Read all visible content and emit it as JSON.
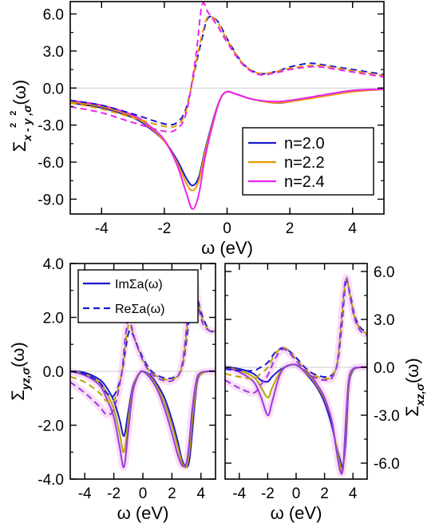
{
  "colors": {
    "n20": "#1a1acc",
    "n22": "#e69a00",
    "n24": "#ee22ee",
    "bottom_n22": "#b8a600",
    "bottom_n24": "#9b3bdc",
    "halo": "#f3c4f3",
    "zero_line": "#cccccc"
  },
  "chart_data": [
    {
      "id": "top",
      "type": "line",
      "title": "",
      "xlabel": "ω (eV)",
      "ylabel": "Σx²-y²,σ(ω)",
      "ylabel_parts": {
        "base": "Σ",
        "sub": "x - y ,σ",
        "sup": "2   2"
      },
      "xlim": [
        -5,
        5
      ],
      "ylim": [
        -10.2,
        7.0
      ],
      "xticks": [
        -4,
        -2,
        0,
        2,
        4
      ],
      "yticks": [
        -9.0,
        -6.0,
        -3.0,
        0.0,
        3.0,
        6.0
      ],
      "ytick_labels": [
        "-9.0",
        "-6.0",
        "-3.0",
        "0.0",
        "3.0",
        "6.0"
      ],
      "legend": {
        "position": "right",
        "entries": [
          "n=2.0",
          "n=2.2",
          "n=2.4"
        ]
      },
      "series": [
        {
          "name": "n=2.0",
          "part": "Im",
          "style": "solid",
          "x": [
            -5,
            -4,
            -3,
            -2.5,
            -2,
            -1.6,
            -1.3,
            -1.1,
            -0.9,
            -0.7,
            -0.4,
            -0.2,
            0,
            0.3,
            0.8,
            1.5,
            2,
            3,
            4,
            5
          ],
          "y": [
            -1.2,
            -1.6,
            -2.4,
            -3.2,
            -4.3,
            -5.8,
            -7.3,
            -7.9,
            -7.2,
            -5.0,
            -2.2,
            -0.8,
            -0.3,
            -0.5,
            -0.9,
            -1.2,
            -1.1,
            -0.6,
            -0.2,
            -0.1
          ]
        },
        {
          "name": "n=2.2",
          "part": "Im",
          "style": "solid",
          "x": [
            -5,
            -4,
            -3,
            -2.5,
            -2,
            -1.6,
            -1.3,
            -1.1,
            -0.9,
            -0.7,
            -0.4,
            -0.2,
            0,
            0.3,
            0.8,
            1.5,
            2,
            3,
            4,
            5
          ],
          "y": [
            -1.1,
            -1.5,
            -2.3,
            -3.1,
            -4.3,
            -6.0,
            -7.7,
            -8.3,
            -7.5,
            -5.2,
            -2.3,
            -0.8,
            -0.3,
            -0.5,
            -0.9,
            -1.2,
            -1.1,
            -0.7,
            -0.3,
            -0.1
          ]
        },
        {
          "name": "n=2.4",
          "part": "Im",
          "style": "solid",
          "x": [
            -5,
            -4,
            -3,
            -2.5,
            -2,
            -1.6,
            -1.3,
            -1.1,
            -0.9,
            -0.7,
            -0.4,
            -0.2,
            0,
            0.3,
            0.8,
            1.5,
            2,
            3,
            4,
            5
          ],
          "y": [
            -1.0,
            -1.4,
            -2.2,
            -3.0,
            -4.2,
            -6.2,
            -8.5,
            -9.8,
            -8.6,
            -5.6,
            -2.4,
            -0.8,
            -0.3,
            -0.5,
            -0.9,
            -1.1,
            -1.0,
            -0.6,
            -0.2,
            -0.1
          ]
        },
        {
          "name": "n=2.0",
          "part": "Re",
          "style": "dashed",
          "x": [
            -5,
            -4,
            -3,
            -2,
            -1.6,
            -1.3,
            -1.0,
            -0.8,
            -0.6,
            -0.3,
            0,
            0.5,
            1,
            1.5,
            2,
            2.6,
            3,
            4,
            5
          ],
          "y": [
            -1.0,
            -1.4,
            -2.1,
            -2.9,
            -2.8,
            -1.6,
            1.8,
            4.0,
            5.7,
            5.4,
            4.0,
            2.0,
            1.2,
            1.3,
            1.7,
            2.0,
            1.9,
            1.5,
            1.1
          ]
        },
        {
          "name": "n=2.2",
          "part": "Re",
          "style": "dashed",
          "x": [
            -5,
            -4,
            -3,
            -2,
            -1.6,
            -1.3,
            -1.0,
            -0.8,
            -0.6,
            -0.3,
            0,
            0.5,
            1,
            1.5,
            2,
            2.6,
            3,
            4,
            5
          ],
          "y": [
            -1.2,
            -1.7,
            -2.4,
            -3.1,
            -3.0,
            -1.8,
            2.0,
            4.3,
            5.8,
            5.3,
            3.9,
            2.0,
            1.2,
            1.3,
            1.6,
            1.8,
            1.8,
            1.4,
            1.0
          ]
        },
        {
          "name": "n=2.4",
          "part": "Re",
          "style": "dashed",
          "x": [
            -5,
            -4,
            -3,
            -2,
            -1.6,
            -1.3,
            -1.0,
            -0.8,
            -0.6,
            -0.3,
            0,
            0.5,
            1,
            1.5,
            2,
            2.6,
            3,
            4,
            5
          ],
          "y": [
            -1.5,
            -2.0,
            -2.8,
            -3.5,
            -3.3,
            -2.0,
            2.5,
            6.7,
            6.1,
            5.0,
            3.7,
            1.9,
            1.1,
            1.2,
            1.5,
            1.7,
            1.7,
            1.3,
            0.9
          ]
        }
      ]
    },
    {
      "id": "bottom-left",
      "type": "line",
      "title": "",
      "xlabel": "ω (eV)",
      "ylabel": "Σyz,σ(ω)",
      "ylabel_parts": {
        "base": "Σ",
        "sub": "yz,σ"
      },
      "xlim": [
        -5,
        5
      ],
      "ylim": [
        -4.0,
        4.0
      ],
      "xticks": [
        -4,
        -2,
        0,
        2,
        4
      ],
      "yticks": [
        -4.0,
        -2.0,
        0.0,
        2.0,
        4.0
      ],
      "ytick_labels": [
        "-4.0",
        "-2.0",
        "0.0",
        "2.0",
        "4.0"
      ],
      "legend": {
        "position": "top-left",
        "entries": [
          "ImΣa(ω)",
          "ReΣa(ω)"
        ]
      },
      "series": [
        {
          "name": "n=2.0",
          "part": "Im",
          "style": "solid",
          "x": [
            -5,
            -4,
            -3,
            -2.5,
            -2,
            -1.6,
            -1.3,
            -1,
            -0.7,
            -0.4,
            -0.2,
            0,
            0.5,
            1,
            1.5,
            2,
            2.4,
            2.7,
            3,
            3.2,
            3.4,
            3.7,
            4,
            4.5,
            5
          ],
          "y": [
            0,
            -0.05,
            -0.3,
            -0.6,
            -1.1,
            -1.8,
            -2.4,
            -1.5,
            -0.6,
            -0.2,
            -0.05,
            0,
            -0.15,
            -0.5,
            -1.0,
            -1.8,
            -2.6,
            -3.3,
            -3.55,
            -3.3,
            -2.2,
            -0.5,
            -0.1,
            0,
            0
          ]
        },
        {
          "name": "n=2.2",
          "part": "Im",
          "style": "solid",
          "x": [
            -5,
            -4,
            -3,
            -2.5,
            -2,
            -1.6,
            -1.3,
            -1,
            -0.7,
            -0.4,
            -0.2,
            0,
            0.5,
            1,
            1.5,
            2,
            2.4,
            2.7,
            3,
            3.2,
            3.4,
            3.7,
            4,
            4.5,
            5
          ],
          "y": [
            0,
            -0.1,
            -0.4,
            -0.8,
            -1.4,
            -2.3,
            -3.0,
            -1.8,
            -0.7,
            -0.2,
            -0.05,
            0,
            -0.2,
            -0.6,
            -1.2,
            -2.0,
            -2.8,
            -3.4,
            -3.55,
            -3.0,
            -1.8,
            -0.4,
            -0.1,
            0,
            0
          ]
        },
        {
          "name": "n=2.4",
          "part": "Im",
          "style": "solid",
          "x": [
            -5,
            -4,
            -3,
            -2.5,
            -2,
            -1.6,
            -1.3,
            -1,
            -0.7,
            -0.4,
            -0.2,
            0,
            0.5,
            1,
            1.5,
            2,
            2.4,
            2.7,
            3,
            3.2,
            3.4,
            3.7,
            4,
            4.5,
            5
          ],
          "y": [
            0,
            -0.15,
            -0.5,
            -1.0,
            -1.7,
            -2.8,
            -3.55,
            -2.2,
            -0.8,
            -0.25,
            -0.05,
            0,
            -0.25,
            -0.7,
            -1.4,
            -2.3,
            -3.1,
            -3.5,
            -3.4,
            -2.6,
            -1.4,
            -0.3,
            -0.05,
            0,
            0
          ]
        },
        {
          "name": "n=2.0",
          "part": "Re",
          "style": "dashed",
          "x": [
            -5,
            -4,
            -3,
            -2.5,
            -2,
            -1.5,
            -1.2,
            -1.0,
            -0.8,
            -0.5,
            0,
            0.5,
            1,
            1.5,
            2,
            2.5,
            2.8,
            3.1,
            3.4,
            3.6,
            3.9,
            4.2,
            4.6,
            5
          ],
          "y": [
            0,
            -0.1,
            -0.4,
            -0.8,
            -0.9,
            -0.2,
            0.8,
            1.4,
            1.5,
            1.1,
            0.5,
            0.05,
            -0.15,
            -0.25,
            -0.25,
            -0.1,
            0.4,
            1.6,
            3.1,
            3.2,
            2.4,
            1.9,
            1.5,
            1.5
          ]
        },
        {
          "name": "n=2.2",
          "part": "Re",
          "style": "dashed",
          "x": [
            -5,
            -4,
            -3,
            -2.5,
            -2,
            -1.5,
            -1.2,
            -1.0,
            -0.8,
            -0.5,
            0,
            0.5,
            1,
            1.5,
            2,
            2.5,
            2.8,
            3.1,
            3.4,
            3.6,
            3.9,
            4.2,
            4.6,
            5
          ],
          "y": [
            -0.2,
            -0.4,
            -0.8,
            -1.1,
            -1.1,
            -0.2,
            1.0,
            1.7,
            1.6,
            1.1,
            0.4,
            0.0,
            -0.2,
            -0.3,
            -0.3,
            -0.1,
            0.5,
            1.9,
            3.3,
            3.3,
            2.3,
            1.8,
            1.5,
            1.5
          ]
        },
        {
          "name": "n=2.4",
          "part": "Re",
          "style": "dashed",
          "x": [
            -5,
            -4,
            -3,
            -2.5,
            -2,
            -1.5,
            -1.2,
            -1.0,
            -0.8,
            -0.5,
            0,
            0.5,
            1,
            1.5,
            2,
            2.5,
            2.8,
            3.1,
            3.4,
            3.6,
            3.9,
            4.2,
            4.6,
            5
          ],
          "y": [
            -0.4,
            -0.8,
            -1.3,
            -1.6,
            -1.4,
            -0.2,
            1.3,
            1.9,
            1.7,
            1.1,
            0.4,
            -0.05,
            -0.25,
            -0.35,
            -0.35,
            -0.1,
            0.6,
            2.1,
            3.4,
            3.3,
            2.2,
            1.7,
            1.5,
            1.5
          ]
        }
      ]
    },
    {
      "id": "bottom-right",
      "type": "line",
      "title": "",
      "xlabel": "ω (eV)",
      "ylabel": "Σxz,σ(ω)",
      "ylabel_parts": {
        "base": "Σ",
        "sub": "xz,σ"
      },
      "ylabel_side": "right",
      "xlim": [
        -5,
        5
      ],
      "ylim": [
        -7.0,
        6.5
      ],
      "xticks": [
        -4,
        -2,
        0,
        2,
        4
      ],
      "yticks": [
        -6.0,
        -3.0,
        0.0,
        3.0,
        6.0
      ],
      "ytick_labels": [
        "-6.0",
        "-3.0",
        "0.0",
        "3.0",
        "6.0"
      ],
      "series": [
        {
          "name": "n=2.0",
          "part": "Im",
          "style": "solid",
          "x": [
            -5,
            -4,
            -3,
            -2.5,
            -2,
            -1.7,
            -1.2,
            -0.8,
            -0.4,
            0,
            0.4,
            1,
            1.5,
            2,
            2.5,
            2.8,
            3.1,
            3.3,
            3.5,
            3.7,
            4,
            4.5,
            5
          ],
          "y": [
            0,
            -0.1,
            -0.4,
            -0.8,
            -0.9,
            -0.6,
            -0.2,
            0.0,
            0.15,
            0.15,
            -0.1,
            -0.7,
            -1.3,
            -2.2,
            -3.6,
            -4.8,
            -5.8,
            -6.2,
            -4.5,
            -1.2,
            -0.2,
            0,
            0
          ]
        },
        {
          "name": "n=2.2",
          "part": "Im",
          "style": "solid",
          "x": [
            -5,
            -4,
            -3,
            -2.5,
            -2,
            -1.7,
            -1.2,
            -0.8,
            -0.4,
            0,
            0.4,
            1,
            1.5,
            2,
            2.5,
            2.8,
            3.1,
            3.3,
            3.5,
            3.7,
            4,
            4.5,
            5
          ],
          "y": [
            0,
            -0.2,
            -0.6,
            -1.2,
            -1.9,
            -1.3,
            -0.4,
            0.0,
            0.15,
            0.15,
            -0.1,
            -0.6,
            -1.2,
            -2.0,
            -3.3,
            -4.8,
            -6.1,
            -6.4,
            -3.8,
            -1.0,
            -0.15,
            0,
            0
          ]
        },
        {
          "name": "n=2.4",
          "part": "Im",
          "style": "solid",
          "x": [
            -5,
            -4,
            -3,
            -2.5,
            -2,
            -1.7,
            -1.2,
            -0.8,
            -0.4,
            0,
            0.4,
            1,
            1.5,
            2,
            2.5,
            2.8,
            3.1,
            3.3,
            3.5,
            3.7,
            4,
            4.5,
            5
          ],
          "y": [
            0,
            -0.3,
            -0.9,
            -1.8,
            -3.0,
            -2.2,
            -0.6,
            0.0,
            0.15,
            0.15,
            -0.1,
            -0.5,
            -1.1,
            -1.9,
            -3.3,
            -5.0,
            -6.5,
            -6.3,
            -3.3,
            -0.8,
            -0.1,
            0,
            0
          ]
        },
        {
          "name": "n=2.0",
          "part": "Re",
          "style": "dashed",
          "x": [
            -5,
            -4,
            -3,
            -2.5,
            -2,
            -1.5,
            -1,
            -0.6,
            0,
            0.5,
            1,
            1.5,
            2,
            2.5,
            2.9,
            3.2,
            3.5,
            3.8,
            4.1,
            4.5,
            5
          ],
          "y": [
            -0.1,
            -0.2,
            -0.2,
            0.0,
            0.3,
            0.9,
            1.2,
            1.1,
            0.6,
            0.1,
            -0.3,
            -0.5,
            -0.6,
            -0.5,
            0.2,
            2.5,
            5.3,
            4.6,
            3.3,
            2.5,
            2.2
          ]
        },
        {
          "name": "n=2.2",
          "part": "Re",
          "style": "dashed",
          "x": [
            -5,
            -4,
            -3,
            -2.5,
            -2,
            -1.5,
            -1,
            -0.6,
            0,
            0.5,
            1,
            1.5,
            2,
            2.5,
            2.9,
            3.2,
            3.5,
            3.8,
            4.1,
            4.5,
            5
          ],
          "y": [
            -0.4,
            -0.6,
            -0.7,
            -0.4,
            0.0,
            0.8,
            1.2,
            1.1,
            0.5,
            0.0,
            -0.4,
            -0.6,
            -0.7,
            -0.6,
            0.3,
            2.9,
            5.5,
            4.5,
            3.2,
            2.4,
            2.1
          ]
        },
        {
          "name": "n=2.4",
          "part": "Re",
          "style": "dashed",
          "x": [
            -5,
            -4,
            -3,
            -2.5,
            -2,
            -1.5,
            -1,
            -0.6,
            0,
            0.5,
            1,
            1.5,
            2,
            2.5,
            2.9,
            3.2,
            3.5,
            3.8,
            4.1,
            4.5,
            5
          ],
          "y": [
            -0.8,
            -1.3,
            -1.6,
            -1.1,
            -0.5,
            0.5,
            1.1,
            1.0,
            0.4,
            -0.1,
            -0.5,
            -0.7,
            -0.8,
            -0.7,
            0.3,
            3.2,
            5.6,
            4.4,
            3.1,
            2.3,
            2.0
          ]
        }
      ]
    }
  ]
}
